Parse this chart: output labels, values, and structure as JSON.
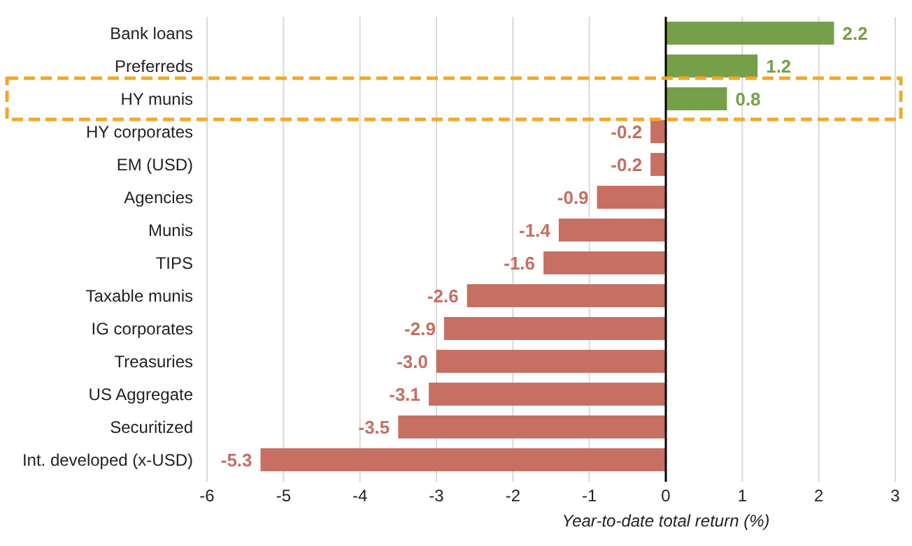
{
  "chart_data": {
    "type": "bar",
    "orientation": "horizontal",
    "xlabel": "Year-to-date total return (%)",
    "categories": [
      "Bank loans",
      "Preferreds",
      "HY munis",
      "HY corporates",
      "EM (USD)",
      "Agencies",
      "Munis",
      "TIPS",
      "Taxable munis",
      "IG corporates",
      "Treasuries",
      "US Aggregate",
      "Securitized",
      "Int. developed (x-USD)"
    ],
    "values": [
      2.2,
      1.2,
      0.8,
      -0.2,
      -0.2,
      -0.9,
      -1.4,
      -1.6,
      -2.6,
      -2.9,
      -3.0,
      -3.1,
      -3.5,
      -5.3
    ],
    "colors": [
      "#76a047",
      "#76a047",
      "#76a047",
      "#c66f62",
      "#c66f62",
      "#c66f62",
      "#c66f62",
      "#c66f62",
      "#c66f62",
      "#c66f62",
      "#c66f62",
      "#c66f62",
      "#c66f62",
      "#c66f62"
    ],
    "value_labels": [
      "2.2",
      "1.2",
      "0.8",
      "-0.2",
      "-0.2",
      "-0.9",
      "-1.4",
      "-1.6",
      "-2.6",
      "-2.9",
      "-3.0",
      "-3.1",
      "-3.5",
      "-5.3"
    ],
    "xlim": [
      -6,
      3
    ],
    "xticks": [
      -6,
      -5,
      -4,
      -3,
      -2,
      -1,
      0,
      1,
      2,
      3
    ],
    "grid": "x"
  }
}
